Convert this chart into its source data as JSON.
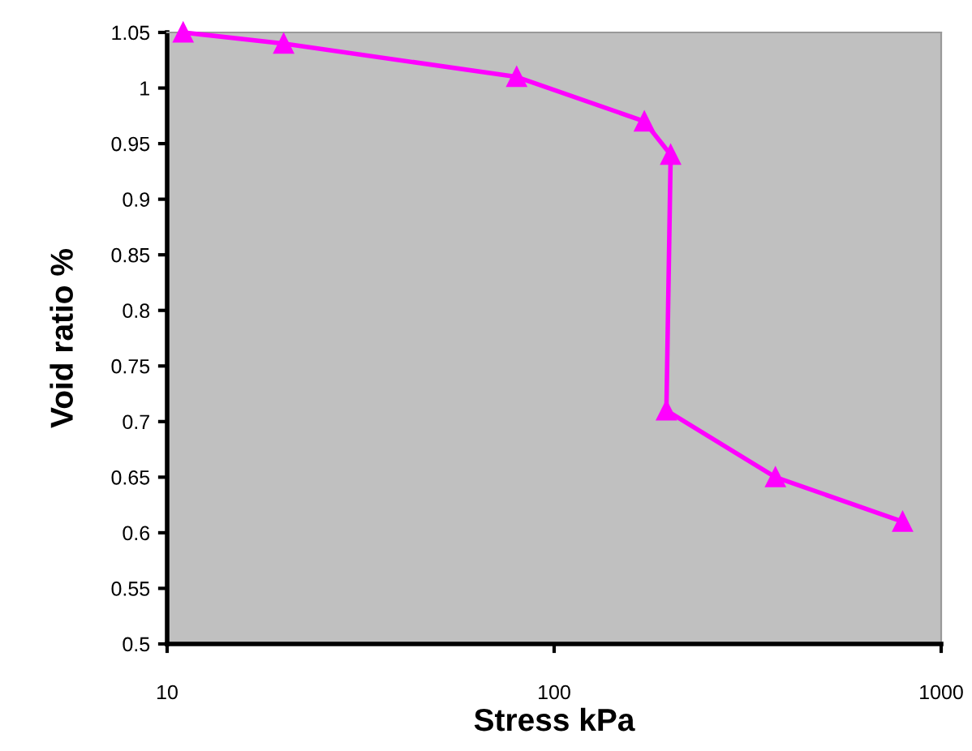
{
  "chart_data": {
    "type": "line",
    "xlabel": "Stress kPa",
    "ylabel": "Void ratio %",
    "log": "x",
    "x": [
      11,
      20,
      80,
      171,
      200,
      195,
      373,
      795
    ],
    "series": [
      {
        "color": "#ff00ff",
        "values": [
          1.05,
          1.04,
          1.01,
          0.97,
          0.94,
          0.71,
          0.65,
          0.61
        ]
      }
    ],
    "marker": "triangle",
    "grid": false,
    "legend": false,
    "xlim": [
      10,
      1000
    ],
    "xticks": [
      10,
      100,
      1000
    ],
    "ylim": [
      0.5,
      1.05
    ],
    "yticks": [
      0.5,
      0.55,
      0.6,
      0.65,
      0.7,
      0.75,
      0.8,
      0.85,
      0.9,
      0.95,
      1,
      1.05
    ]
  }
}
